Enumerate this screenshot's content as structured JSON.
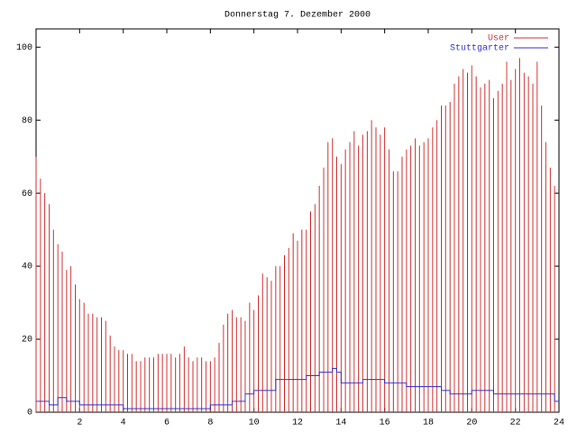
{
  "chart_data": {
    "type": "impulse-step",
    "title": "Donnerstag 7. Dezember 2000",
    "x": [
      0,
      0.2,
      0.4,
      0.6,
      0.8,
      1,
      1.2,
      1.4,
      1.6,
      1.8,
      2,
      2.2,
      2.4,
      2.6,
      2.8,
      3,
      3.2,
      3.4,
      3.6,
      3.8,
      4,
      4.2,
      4.4,
      4.6,
      4.8,
      5,
      5.2,
      5.4,
      5.6,
      5.8,
      6,
      6.2,
      6.4,
      6.6,
      6.8,
      7,
      7.2,
      7.4,
      7.6,
      7.8,
      8,
      8.2,
      8.4,
      8.6,
      8.8,
      9,
      9.2,
      9.4,
      9.6,
      9.8,
      10,
      10.2,
      10.4,
      10.6,
      10.8,
      11,
      11.2,
      11.4,
      11.6,
      11.8,
      12,
      12.2,
      12.4,
      12.6,
      12.8,
      13,
      13.2,
      13.4,
      13.6,
      13.8,
      14,
      14.2,
      14.4,
      14.6,
      14.8,
      15,
      15.2,
      15.4,
      15.6,
      15.8,
      16,
      16.2,
      16.4,
      16.6,
      16.8,
      17,
      17.2,
      17.4,
      17.6,
      17.8,
      18,
      18.2,
      18.4,
      18.6,
      18.8,
      19,
      19.2,
      19.4,
      19.6,
      19.8,
      20,
      20.2,
      20.4,
      20.6,
      20.8,
      21,
      21.2,
      21.4,
      21.6,
      21.8,
      22,
      22.2,
      22.4,
      22.6,
      22.8,
      23,
      23.2,
      23.4,
      23.6,
      23.8
    ],
    "series": [
      {
        "name": "User",
        "color": "#d03030",
        "style": "impulses",
        "values": [
          70,
          64,
          60,
          57,
          50,
          46,
          44,
          39,
          40,
          35,
          31,
          30,
          27,
          27,
          26,
          26,
          25,
          21,
          18,
          17,
          17,
          16,
          16,
          14,
          14,
          15,
          15,
          15,
          16,
          16,
          16,
          16,
          15,
          16,
          18,
          15,
          14,
          15,
          15,
          14,
          14,
          15,
          19,
          24,
          27,
          28,
          26,
          26,
          25,
          30,
          28,
          32,
          38,
          37,
          36,
          40,
          40,
          43,
          45,
          49,
          47,
          50,
          50,
          55,
          57,
          62,
          67,
          74,
          75,
          70,
          68,
          72,
          74,
          77,
          73,
          76,
          77,
          80,
          78,
          76,
          78,
          72,
          66,
          66,
          70,
          72,
          73,
          75,
          73,
          74,
          75,
          78,
          80,
          84,
          84,
          85,
          90,
          92,
          94,
          93,
          95,
          92,
          89,
          90,
          91,
          86,
          88,
          90,
          96,
          91,
          94,
          97,
          93,
          92,
          90,
          96,
          84,
          74,
          67,
          62
        ]
      },
      {
        "name": "Stuttgarter",
        "color": "#3030d0",
        "style": "steps",
        "values": [
          3,
          3,
          3,
          2,
          2,
          4,
          4,
          3,
          3,
          3,
          2,
          2,
          2,
          2,
          2,
          2,
          2,
          2,
          2,
          2,
          1,
          1,
          1,
          1,
          1,
          1,
          1,
          1,
          1,
          1,
          1,
          1,
          1,
          1,
          1,
          1,
          1,
          1,
          1,
          1,
          2,
          2,
          2,
          2,
          2,
          3,
          3,
          3,
          5,
          5,
          6,
          6,
          6,
          6,
          6,
          9,
          9,
          9,
          9,
          9,
          9,
          9,
          10,
          10,
          10,
          11,
          11,
          11,
          12,
          11,
          8,
          8,
          8,
          8,
          8,
          9,
          9,
          9,
          9,
          9,
          8,
          8,
          8,
          8,
          8,
          7,
          7,
          7,
          7,
          7,
          7,
          7,
          7,
          6,
          6,
          5,
          5,
          5,
          5,
          5,
          6,
          6,
          6,
          6,
          6,
          5,
          5,
          5,
          5,
          5,
          5,
          5,
          5,
          5,
          5,
          5,
          5,
          5,
          5,
          3
        ]
      }
    ],
    "xlim": [
      0,
      24
    ],
    "xticks": [
      2,
      4,
      6,
      8,
      10,
      12,
      14,
      16,
      18,
      20,
      22,
      24
    ],
    "ylim": [
      0,
      105
    ],
    "yticks": [
      0,
      20,
      40,
      60,
      80,
      100
    ],
    "legend": "top-right"
  }
}
